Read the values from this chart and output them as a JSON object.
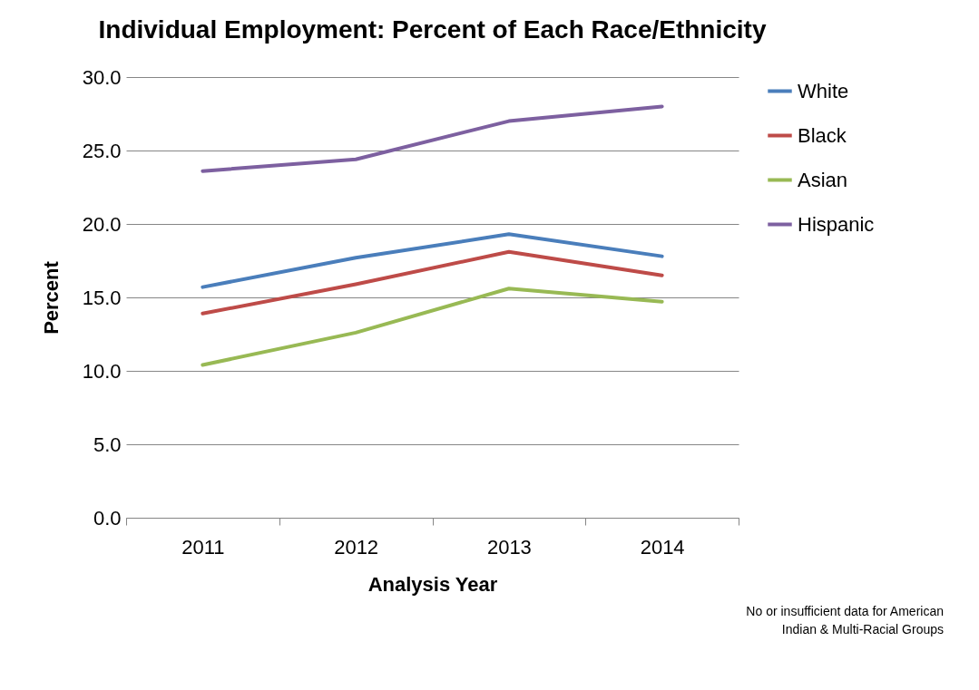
{
  "chart_data": {
    "type": "line",
    "title": "Individual Employment: Percent of Each Race/Ethnicity",
    "xlabel": "Analysis Year",
    "ylabel": "Percent",
    "categories": [
      "2011",
      "2012",
      "2013",
      "2014"
    ],
    "series": [
      {
        "name": "White",
        "color": "#4a7ebb",
        "values": [
          15.7,
          17.7,
          19.3,
          17.8
        ]
      },
      {
        "name": "Black",
        "color": "#be4b48",
        "values": [
          13.9,
          15.9,
          18.1,
          16.5
        ]
      },
      {
        "name": "Asian",
        "color": "#98b954",
        "values": [
          10.4,
          12.6,
          15.6,
          14.7
        ]
      },
      {
        "name": "Hispanic",
        "color": "#7d60a0",
        "values": [
          23.6,
          24.4,
          27.0,
          28.0
        ]
      }
    ],
    "ylim": [
      0,
      30
    ],
    "yticks": [
      {
        "value": 0,
        "label": "0.0"
      },
      {
        "value": 5,
        "label": "5.0"
      },
      {
        "value": 10,
        "label": "10.0"
      },
      {
        "value": 15,
        "label": "15.0"
      },
      {
        "value": 20,
        "label": "20.0"
      },
      {
        "value": 25,
        "label": "25.0"
      },
      {
        "value": 30,
        "label": "30.0"
      }
    ],
    "grid": "y",
    "legend": "right",
    "marker": "none",
    "line_style": "solid",
    "annotations": [
      "No or insufficient data for American Indian & Multi-Racial Groups"
    ]
  }
}
